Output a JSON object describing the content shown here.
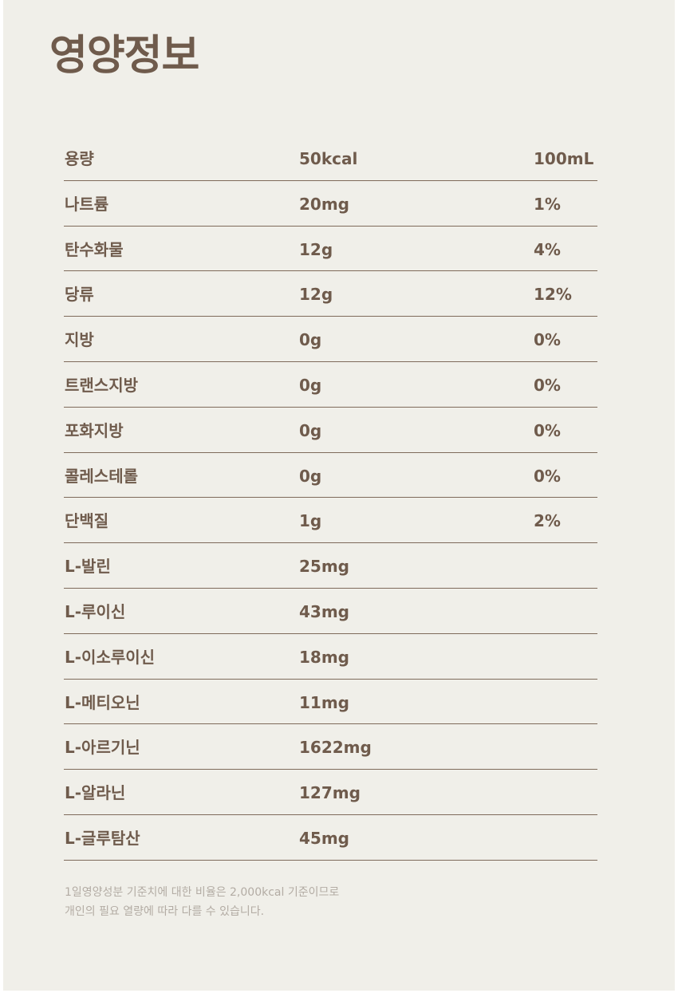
{
  "title": "영양정보",
  "rows": [
    {
      "name": "용량",
      "amount": "50kcal",
      "percent": "100mL"
    },
    {
      "name": "나트륨",
      "amount": "20mg",
      "percent": "1%"
    },
    {
      "name": "탄수화물",
      "amount": "12g",
      "percent": "4%"
    },
    {
      "name": "당류",
      "amount": "12g",
      "percent": "12%"
    },
    {
      "name": "지방",
      "amount": "0g",
      "percent": "0%"
    },
    {
      "name": "트랜스지방",
      "amount": "0g",
      "percent": "0%"
    },
    {
      "name": "포화지방",
      "amount": "0g",
      "percent": "0%"
    },
    {
      "name": "콜레스테롤",
      "amount": "0g",
      "percent": "0%"
    },
    {
      "name": "단백질",
      "amount": "1g",
      "percent": "2%"
    },
    {
      "name": "L-발린",
      "amount": "25mg",
      "percent": ""
    },
    {
      "name": "L-루이신",
      "amount": "43mg",
      "percent": ""
    },
    {
      "name": "L-이소루이신",
      "amount": "18mg",
      "percent": ""
    },
    {
      "name": "L-메티오닌",
      "amount": "11mg",
      "percent": ""
    },
    {
      "name": "L-아르기닌",
      "amount": "1622mg",
      "percent": ""
    },
    {
      "name": "L-알라닌",
      "amount": "127mg",
      "percent": ""
    },
    {
      "name": "L-글루탐산",
      "amount": "45mg",
      "percent": ""
    }
  ],
  "footnote": {
    "line1": "1일영양성분 기준치에 대한 비율은 2,000kcal 기준이므로",
    "line2": "개인의 필요 열량에 따라 다를 수 있습니다."
  },
  "colors": {
    "background": "#f0efe9",
    "text": "#6f5b4c",
    "divider": "#7e6a5a",
    "footnote": "#b3aca4"
  }
}
